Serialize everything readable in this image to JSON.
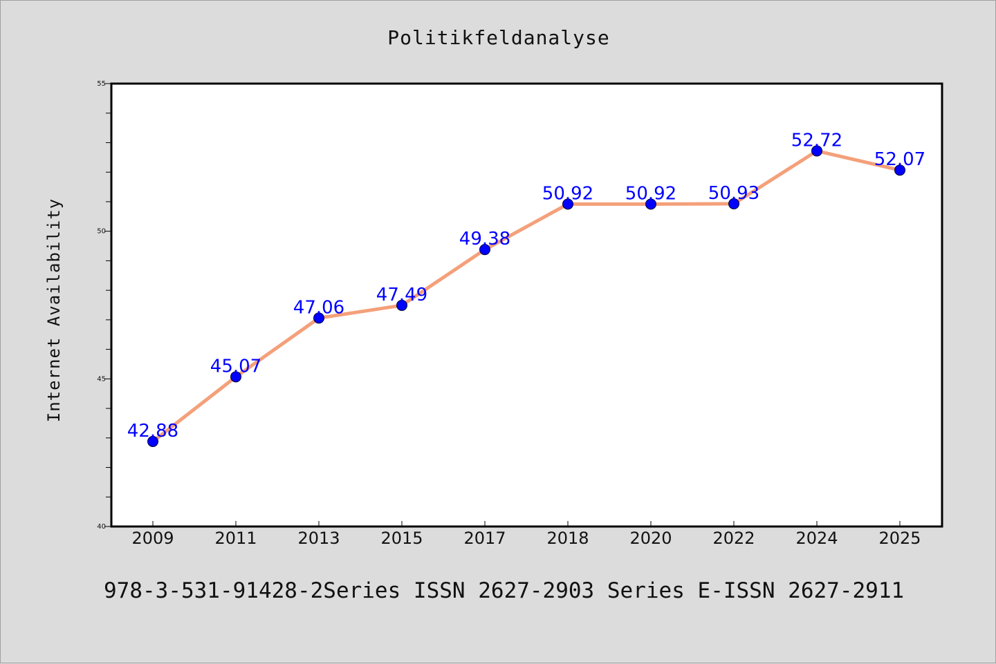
{
  "chart_data": {
    "type": "line",
    "title": "Politikfeldanalyse",
    "xlabel": "",
    "ylabel": "Internet Availability",
    "categories": [
      "2009",
      "2011",
      "2013",
      "2015",
      "2017",
      "2018",
      "2020",
      "2022",
      "2024",
      "2025"
    ],
    "series": [
      {
        "values": [
          42.88,
          45.07,
          47.06,
          47.49,
          49.38,
          50.92,
          50.92,
          50.93,
          52.72,
          52.07
        ],
        "data_labels": [
          "42.88",
          "45.07",
          "47.06",
          "47.49",
          "49.38",
          "50.92",
          "50.92",
          "50.93",
          "52.72",
          "52.07"
        ]
      }
    ],
    "ylim": [
      40,
      55
    ],
    "yticks": [
      40,
      45,
      50,
      55
    ],
    "ytick_labels": [
      "40",
      "45",
      "50",
      "55"
    ],
    "grid": false,
    "colors": {
      "line": "#f4a07a",
      "marker": "#0000ff",
      "label": "#0000ff"
    }
  },
  "footer": "978-3-531-91428-2Series ISSN 2627-2903 Series E-ISSN 2627-2911"
}
